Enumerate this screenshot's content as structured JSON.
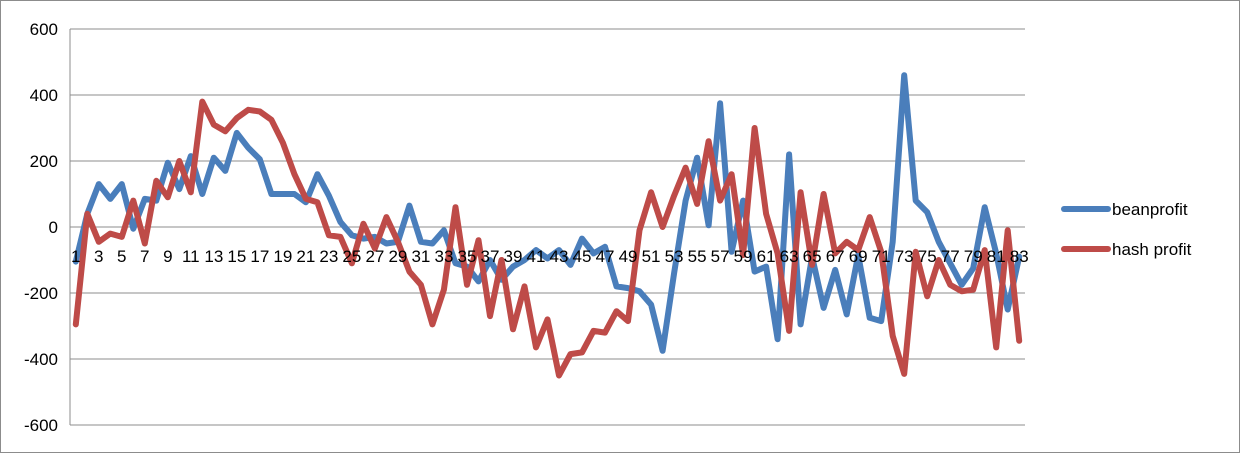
{
  "chart_data": {
    "type": "line",
    "title": "",
    "xlabel": "",
    "ylabel": "",
    "ylim": [
      -600,
      600
    ],
    "y_ticks": [
      -600,
      -400,
      -200,
      0,
      200,
      400,
      600
    ],
    "x": [
      1,
      2,
      3,
      4,
      5,
      6,
      7,
      8,
      9,
      10,
      11,
      12,
      13,
      14,
      15,
      16,
      17,
      18,
      19,
      20,
      21,
      22,
      23,
      24,
      25,
      26,
      27,
      28,
      29,
      30,
      31,
      32,
      33,
      34,
      35,
      36,
      37,
      38,
      39,
      40,
      41,
      42,
      43,
      44,
      45,
      46,
      47,
      48,
      49,
      50,
      51,
      52,
      53,
      54,
      55,
      56,
      57,
      58,
      59,
      60,
      61,
      62,
      63,
      64,
      65,
      66,
      67,
      68,
      69,
      70,
      71,
      72,
      73,
      74,
      75,
      76,
      77,
      78,
      79,
      80,
      81,
      82,
      83
    ],
    "x_tick_labels": [
      "1",
      "3",
      "5",
      "7",
      "9",
      "11",
      "13",
      "15",
      "17",
      "19",
      "21",
      "23",
      "25",
      "27",
      "29",
      "31",
      "33",
      "35",
      "37",
      "39",
      "41",
      "43",
      "45",
      "47",
      "49",
      "51",
      "53",
      "55",
      "57",
      "59",
      "61",
      "63",
      "65",
      "67",
      "69",
      "71",
      "73",
      "75",
      "77",
      "79",
      "81",
      "83"
    ],
    "legend_position": "right",
    "series": [
      {
        "name": "beanprofit",
        "color": "#4a7ebb",
        "values": [
          -105,
          40,
          130,
          85,
          130,
          -5,
          85,
          80,
          195,
          115,
          215,
          100,
          210,
          170,
          285,
          240,
          205,
          100,
          100,
          100,
          75,
          160,
          95,
          15,
          -25,
          -35,
          -30,
          -50,
          -45,
          65,
          -45,
          -50,
          -10,
          -110,
          -120,
          -165,
          -100,
          -160,
          -120,
          -100,
          -70,
          -95,
          -70,
          -115,
          -35,
          -80,
          -60,
          -180,
          -185,
          -195,
          -235,
          -375,
          -140,
          80,
          210,
          5,
          375,
          -75,
          80,
          -135,
          -120,
          -340,
          220,
          -295,
          -90,
          -245,
          -130,
          -265,
          -85,
          -275,
          -285,
          -45,
          460,
          80,
          45,
          -45,
          -110,
          -175,
          -125,
          60,
          -80,
          -250,
          -90
        ]
      },
      {
        "name": "hash profit",
        "color": "#be4b48",
        "values": [
          -295,
          40,
          -45,
          -20,
          -30,
          80,
          -50,
          140,
          90,
          200,
          105,
          380,
          310,
          290,
          330,
          355,
          350,
          325,
          255,
          160,
          85,
          75,
          -25,
          -30,
          -110,
          10,
          -65,
          30,
          -45,
          -135,
          -175,
          -295,
          -190,
          60,
          -175,
          -40,
          -270,
          -100,
          -310,
          -180,
          -365,
          -280,
          -450,
          -385,
          -380,
          -315,
          -320,
          -255,
          -285,
          -10,
          105,
          0,
          95,
          180,
          70,
          260,
          80,
          160,
          -85,
          300,
          40,
          -80,
          -315,
          105,
          -115,
          100,
          -80,
          -45,
          -70,
          30,
          -75,
          -330,
          -445,
          -75,
          -210,
          -100,
          -175,
          -195,
          -190,
          -70,
          -365,
          -10,
          -345
        ]
      }
    ]
  }
}
